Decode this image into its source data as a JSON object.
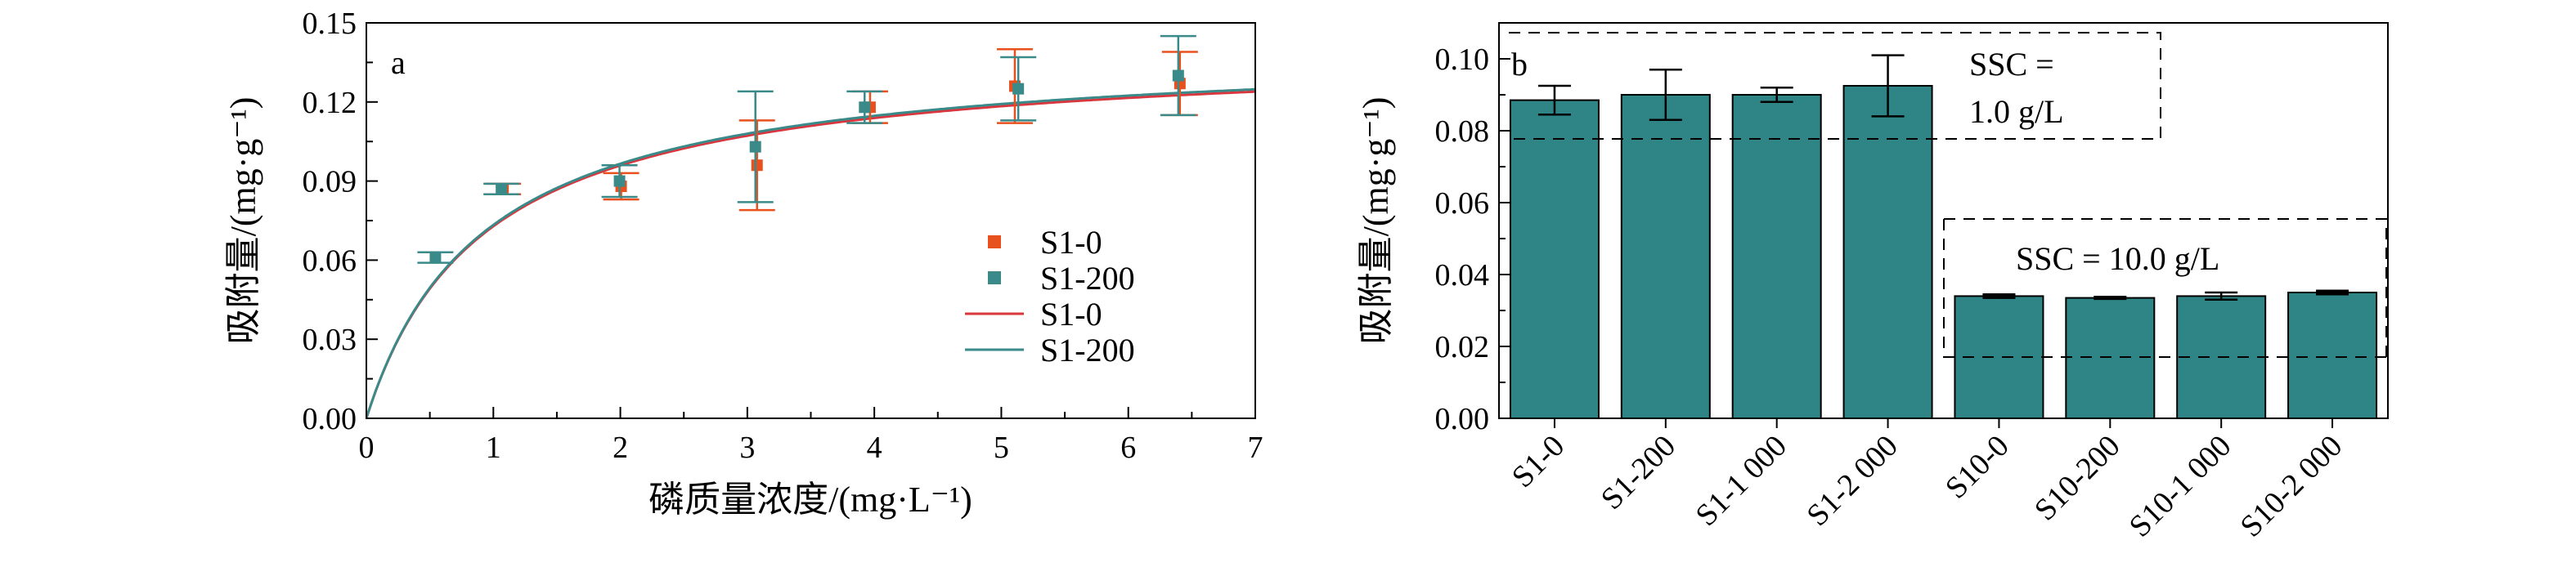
{
  "chart_data": [
    {
      "type": "scatter",
      "panel": "a",
      "xlabel": "磷质量浓度/(mg·L⁻¹)",
      "ylabel": "吸附量/(mg·g⁻¹)",
      "xlim": [
        0,
        7
      ],
      "ylim": [
        0,
        0.15
      ],
      "xticks": [
        0,
        1,
        2,
        3,
        4,
        5,
        6,
        7
      ],
      "yticks": [
        "0.00",
        "0.03",
        "0.06",
        "0.09",
        "0.12",
        "0.15"
      ],
      "grid": false,
      "legend_position": "bottom-right",
      "series": [
        {
          "name": "S1-0",
          "kind": "points",
          "color": "#e8501e",
          "marker": "square",
          "x": [
            1.07,
            2.0,
            3.07,
            3.96,
            5.1,
            6.4
          ],
          "y": [
            0.087,
            0.088,
            0.096,
            0.118,
            0.126,
            0.127
          ],
          "err": [
            0.002,
            0.005,
            0.017,
            0.006,
            0.014,
            0.012
          ]
        },
        {
          "name": "S1-200",
          "kind": "points",
          "color": "#3a8a8a",
          "marker": "square",
          "x": [
            0.55,
            1.07,
            2.0,
            3.07,
            3.93,
            5.14,
            6.4
          ],
          "y": [
            0.061,
            0.087,
            0.09,
            0.103,
            0.118,
            0.125,
            0.13
          ],
          "err": [
            0.002,
            0.002,
            0.006,
            0.021,
            0.006,
            0.012,
            0.015
          ]
        },
        {
          "name": "S1-0",
          "kind": "fit",
          "color": "#d9363e",
          "model": "langmuir",
          "qmax": 0.1403,
          "K": 1.08
        },
        {
          "name": "S1-200",
          "kind": "fit",
          "color": "#3a8a8a",
          "model": "langmuir",
          "qmax": 0.1413,
          "K": 1.08
        }
      ]
    },
    {
      "type": "bar",
      "panel": "b",
      "ylabel": "吸附量/(mg·g⁻¹)",
      "ylim": [
        0,
        0.11
      ],
      "yticks": [
        "0.00",
        "0.02",
        "0.04",
        "0.06",
        "0.08",
        "0.10"
      ],
      "categories": [
        "S1-0",
        "S1-200",
        "S1-1 000",
        "S1-2 000",
        "S10-0",
        "S10-200",
        "S10-1 000",
        "S10-2 000"
      ],
      "values": [
        0.0885,
        0.09,
        0.09,
        0.0925,
        0.034,
        0.0335,
        0.034,
        0.035
      ],
      "errors": [
        0.004,
        0.007,
        0.002,
        0.0085,
        0.0005,
        0.0003,
        0.001,
        0.0005
      ],
      "bar_color": "#2f8585",
      "grid": false,
      "annotations": [
        {
          "lines": [
            "SSC =",
            "1.0 g/L"
          ],
          "group": "left"
        },
        {
          "lines": [
            "SSC = 10.0 g/L"
          ],
          "group": "right"
        }
      ]
    }
  ]
}
